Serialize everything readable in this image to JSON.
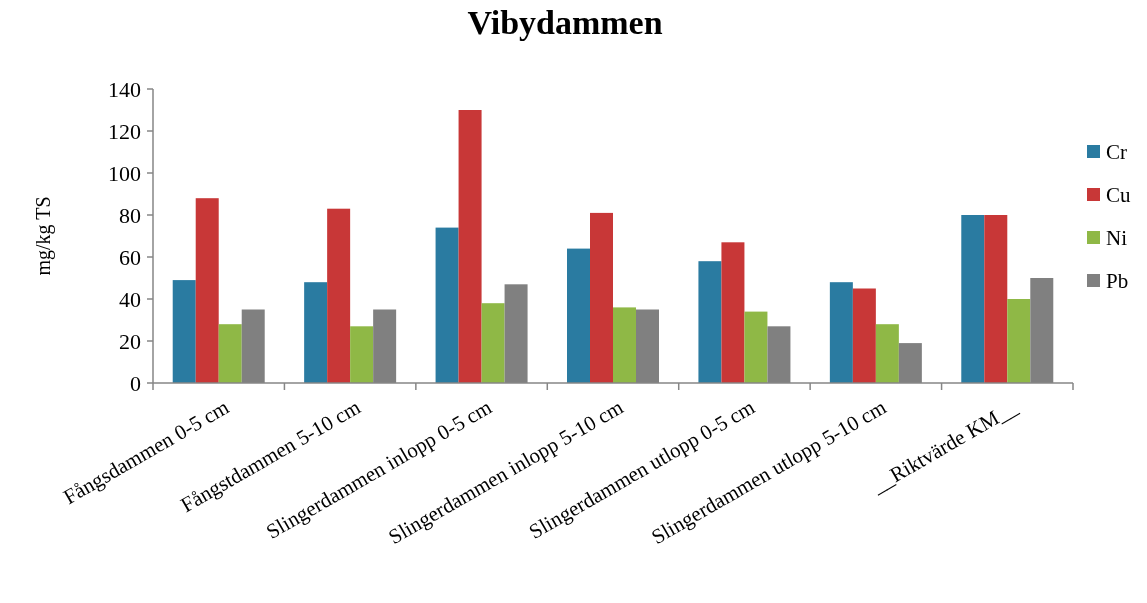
{
  "chart_data": {
    "type": "bar",
    "title": "Vibydammen",
    "ylabel": "mg/kg TS",
    "categories": [
      "Fångsdammen 0-5 cm",
      "Fångstdammen 5-10 cm",
      "Slingerdammen inlopp 0-5 cm",
      "Slingerdammen inlopp 5-10 cm",
      "Slingerdammen utlopp 0-5 cm",
      "Slingerdammen utlopp 5-10 cm",
      "__Riktvärde KM__"
    ],
    "series": [
      {
        "name": "Cr",
        "color": "#2a7ba1",
        "values": [
          49,
          48,
          74,
          64,
          58,
          48,
          80
        ]
      },
      {
        "name": "Cu",
        "color": "#c83737",
        "values": [
          88,
          83,
          130,
          81,
          67,
          45,
          80
        ]
      },
      {
        "name": "Ni",
        "color": "#8fb846",
        "values": [
          28,
          27,
          38,
          36,
          34,
          28,
          40
        ]
      },
      {
        "name": "Pb",
        "color": "#808080",
        "values": [
          35,
          35,
          47,
          35,
          27,
          19,
          50
        ]
      }
    ],
    "ylim": [
      0,
      140
    ],
    "yticks": [
      0,
      20,
      40,
      60,
      80,
      100,
      120,
      140
    ],
    "grid": false,
    "legend": "right"
  }
}
